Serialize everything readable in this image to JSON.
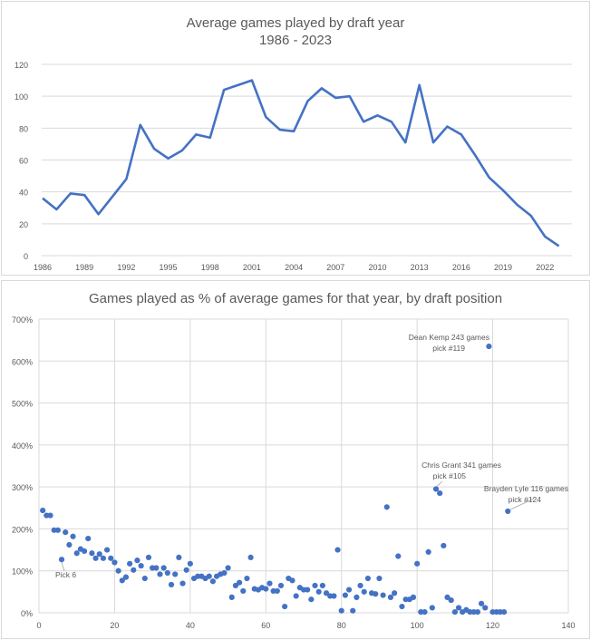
{
  "chart_data": [
    {
      "type": "line",
      "title": "Average games played by draft year",
      "subtitle": "1986 - 2023",
      "color": "#4472c4",
      "ylim": [
        0,
        120
      ],
      "y_ticks": [
        0,
        20,
        40,
        60,
        80,
        100,
        120
      ],
      "x_ticks": [
        1986,
        1989,
        1992,
        1995,
        1998,
        2001,
        2004,
        2007,
        2010,
        2013,
        2016,
        2019,
        2022
      ],
      "grid": "horizontal",
      "x": [
        1986,
        1987,
        1988,
        1989,
        1990,
        1991,
        1992,
        1993,
        1994,
        1995,
        1996,
        1997,
        1998,
        1999,
        2000,
        2001,
        2002,
        2003,
        2004,
        2005,
        2006,
        2007,
        2008,
        2009,
        2010,
        2011,
        2012,
        2013,
        2014,
        2015,
        2016,
        2017,
        2018,
        2019,
        2020,
        2021,
        2022,
        2023
      ],
      "values": [
        36,
        29,
        39,
        38,
        26,
        37,
        48,
        82,
        67,
        61,
        66,
        76,
        74,
        104,
        107,
        110,
        87,
        79,
        78,
        97,
        105,
        99,
        100,
        84,
        88,
        84,
        71,
        107,
        71,
        81,
        76,
        63,
        49,
        41,
        32,
        25,
        12,
        6
      ]
    },
    {
      "type": "scatter",
      "title": "Games played as % of average games for that year, by draft position",
      "color": "#4472c4",
      "xlim": [
        0,
        140
      ],
      "ylim": [
        0,
        700
      ],
      "x_ticks": [
        0,
        20,
        40,
        60,
        80,
        100,
        120,
        140
      ],
      "y_ticks": [
        "0%",
        "100%",
        "200%",
        "300%",
        "400%",
        "500%",
        "600%",
        "700%"
      ],
      "grid": "both",
      "points": [
        [
          1,
          244
        ],
        [
          2,
          232
        ],
        [
          3,
          232
        ],
        [
          4,
          197
        ],
        [
          5,
          197
        ],
        [
          6,
          127
        ],
        [
          7,
          192
        ],
        [
          8,
          162
        ],
        [
          9,
          182
        ],
        [
          10,
          142
        ],
        [
          11,
          152
        ],
        [
          12,
          147
        ],
        [
          13,
          177
        ],
        [
          14,
          142
        ],
        [
          15,
          130
        ],
        [
          16,
          140
        ],
        [
          17,
          130
        ],
        [
          18,
          150
        ],
        [
          19,
          130
        ],
        [
          20,
          120
        ],
        [
          21,
          100
        ],
        [
          22,
          77
        ],
        [
          23,
          85
        ],
        [
          24,
          117
        ],
        [
          25,
          102
        ],
        [
          26,
          125
        ],
        [
          27,
          112
        ],
        [
          28,
          82
        ],
        [
          29,
          132
        ],
        [
          30,
          107
        ],
        [
          31,
          107
        ],
        [
          32,
          92
        ],
        [
          33,
          107
        ],
        [
          34,
          95
        ],
        [
          35,
          67
        ],
        [
          36,
          92
        ],
        [
          37,
          132
        ],
        [
          38,
          70
        ],
        [
          39,
          102
        ],
        [
          40,
          117
        ],
        [
          41,
          82
        ],
        [
          42,
          87
        ],
        [
          43,
          87
        ],
        [
          44,
          82
        ],
        [
          45,
          87
        ],
        [
          46,
          75
        ],
        [
          47,
          87
        ],
        [
          48,
          92
        ],
        [
          49,
          95
        ],
        [
          50,
          107
        ],
        [
          51,
          37
        ],
        [
          52,
          65
        ],
        [
          53,
          72
        ],
        [
          54,
          52
        ],
        [
          55,
          82
        ],
        [
          56,
          132
        ],
        [
          57,
          57
        ],
        [
          58,
          55
        ],
        [
          59,
          60
        ],
        [
          60,
          57
        ],
        [
          61,
          70
        ],
        [
          62,
          52
        ],
        [
          63,
          52
        ],
        [
          64,
          65
        ],
        [
          65,
          15
        ],
        [
          66,
          82
        ],
        [
          67,
          77
        ],
        [
          68,
          40
        ],
        [
          69,
          60
        ],
        [
          70,
          55
        ],
        [
          71,
          55
        ],
        [
          72,
          32
        ],
        [
          73,
          65
        ],
        [
          74,
          50
        ],
        [
          75,
          65
        ],
        [
          76,
          47
        ],
        [
          77,
          40
        ],
        [
          78,
          40
        ],
        [
          79,
          150
        ],
        [
          80,
          5
        ],
        [
          81,
          42
        ],
        [
          82,
          55
        ],
        [
          83,
          5
        ],
        [
          84,
          37
        ],
        [
          85,
          65
        ],
        [
          86,
          50
        ],
        [
          87,
          82
        ],
        [
          88,
          47
        ],
        [
          89,
          45
        ],
        [
          90,
          82
        ],
        [
          91,
          42
        ],
        [
          92,
          252
        ],
        [
          93,
          37
        ],
        [
          94,
          47
        ],
        [
          95,
          135
        ],
        [
          96,
          15
        ],
        [
          97,
          32
        ],
        [
          98,
          32
        ],
        [
          99,
          37
        ],
        [
          100,
          117
        ],
        [
          101,
          2
        ],
        [
          102,
          2
        ],
        [
          103,
          145
        ],
        [
          104,
          12
        ],
        [
          105,
          295
        ],
        [
          106,
          285
        ],
        [
          107,
          160
        ],
        [
          108,
          37
        ],
        [
          109,
          30
        ],
        [
          110,
          2
        ],
        [
          111,
          12
        ],
        [
          112,
          2
        ],
        [
          113,
          7
        ],
        [
          114,
          2
        ],
        [
          115,
          2
        ],
        [
          116,
          2
        ],
        [
          117,
          22
        ],
        [
          118,
          12
        ],
        [
          119,
          635
        ],
        [
          120,
          2
        ],
        [
          121,
          2
        ],
        [
          122,
          2
        ],
        [
          123,
          2
        ],
        [
          124,
          242
        ]
      ],
      "annotations": [
        {
          "line1": "Dean Kemp 243 games",
          "line2": "pick #119",
          "x": 119,
          "y": 635
        },
        {
          "line1": "Chris Grant 341 games",
          "line2": "pick #105",
          "x": 105,
          "y": 295
        },
        {
          "line1": "Brayden Lyle 116 games",
          "line2": "pick #124",
          "x": 124,
          "y": 242
        },
        {
          "line1": "Pick 6",
          "line2": "",
          "x": 6,
          "y": 127
        }
      ]
    }
  ]
}
